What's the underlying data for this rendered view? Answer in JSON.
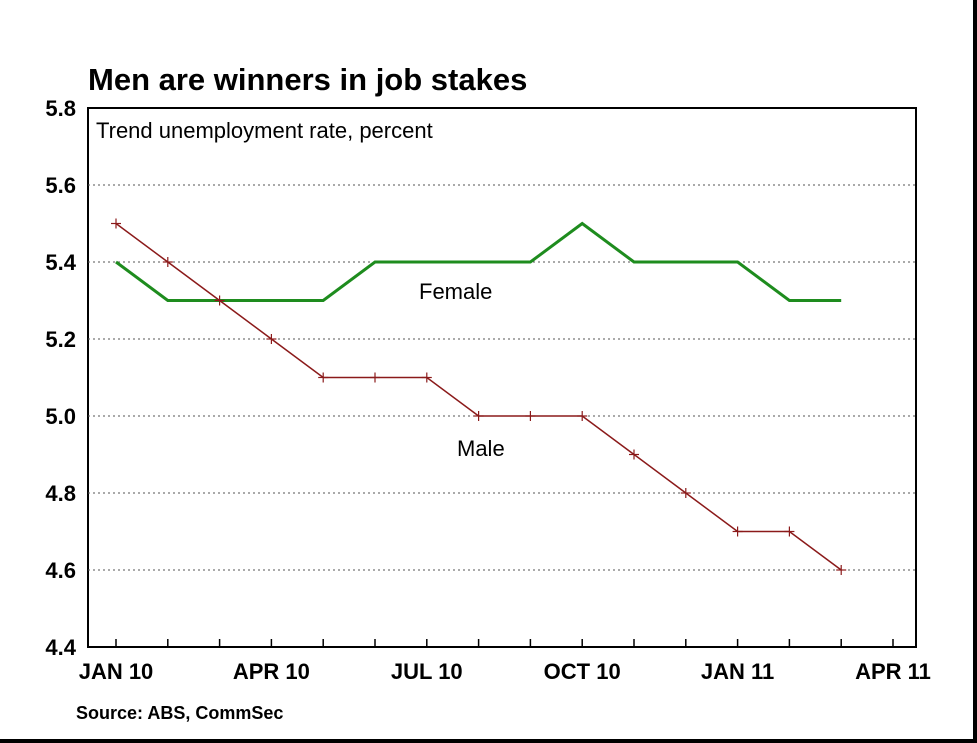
{
  "chart_data": {
    "type": "line",
    "title": "Men are winners in job stakes",
    "subtitle": "Trend unemployment rate, percent",
    "source": "Source: ABS, CommSec",
    "ylim": [
      4.4,
      5.8
    ],
    "y_ticks": [
      "5.8",
      "5.6",
      "5.4",
      "5.2",
      "5.0",
      "4.8",
      "4.6",
      "4.4"
    ],
    "y_tick_values": [
      5.8,
      5.6,
      5.4,
      5.2,
      5.0,
      4.8,
      4.6,
      4.4
    ],
    "x_tick_labels": [
      "JAN 10",
      "APR 10",
      "JUL 10",
      "OCT 10",
      "JAN 11",
      "APR 11"
    ],
    "x_tick_positions": [
      "Jan 2010",
      "Apr 2010",
      "Jul 2010",
      "Oct 2010",
      "Jan 2011",
      "Apr 2011"
    ],
    "x": [
      "Jan 2010",
      "Feb 2010",
      "Mar 2010",
      "Apr 2010",
      "May 2010",
      "Jun 2010",
      "Jul 2010",
      "Aug 2010",
      "Sep 2010",
      "Oct 2010",
      "Nov 2010",
      "Dec 2010",
      "Jan 2011",
      "Feb 2011",
      "Mar 2011"
    ],
    "grid": "horizontal dotted",
    "series": [
      {
        "name": "Female",
        "color": "#1e8c1e",
        "values": [
          5.4,
          5.3,
          5.3,
          5.3,
          5.3,
          5.4,
          5.4,
          5.4,
          5.4,
          5.5,
          5.4,
          5.4,
          5.4,
          5.3,
          5.3
        ]
      },
      {
        "name": "Male",
        "color": "#8b1a1a",
        "marker": "plus",
        "values": [
          5.5,
          5.4,
          5.3,
          5.2,
          5.1,
          5.1,
          5.1,
          5.0,
          5.0,
          5.0,
          4.9,
          4.8,
          4.7,
          4.7,
          4.6
        ]
      }
    ]
  }
}
